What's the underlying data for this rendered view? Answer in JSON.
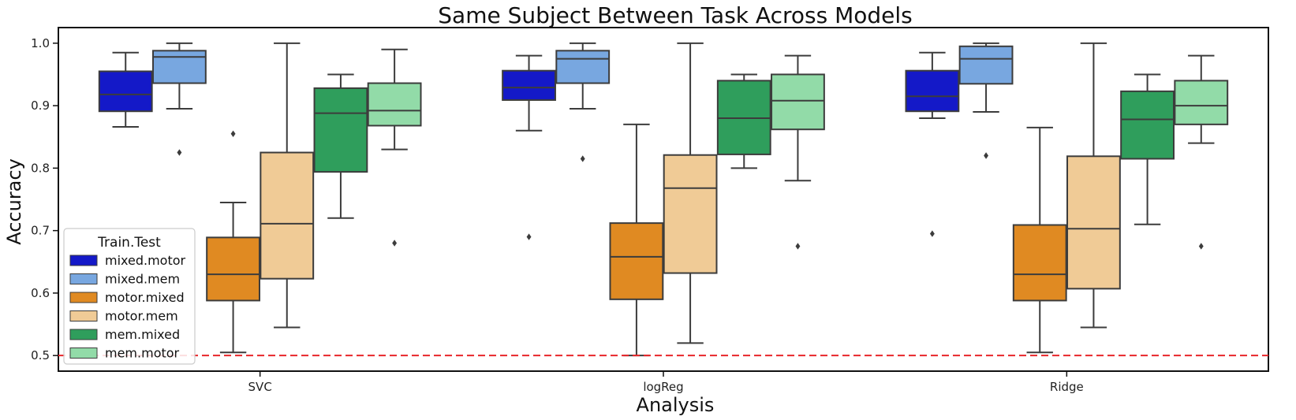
{
  "chart_data": {
    "type": "boxplot",
    "title": "Same Subject Between Task Across Models",
    "xlabel": "Analysis",
    "ylabel": "Accuracy",
    "ylim": [
      0.475,
      1.025
    ],
    "yticks": [
      "0.5",
      "0.6",
      "0.7",
      "0.8",
      "0.9",
      "1.0"
    ],
    "categories": [
      "SVC",
      "logReg",
      "Ridge"
    ],
    "reference_line": {
      "y": 0.5,
      "color": "#e8262a",
      "style": "dashed"
    },
    "legend": {
      "title": "Train.Test",
      "placement": "lower-left"
    },
    "series": [
      {
        "name": "mixed.motor",
        "color": "#1419c8",
        "boxes": [
          {
            "whislo": 0.866,
            "q1": 0.891,
            "med": 0.918,
            "q3": 0.955,
            "whishi": 0.985,
            "fliers": []
          },
          {
            "whislo": 0.86,
            "q1": 0.909,
            "med": 0.929,
            "q3": 0.956,
            "whishi": 0.98,
            "fliers": [
              0.69
            ]
          },
          {
            "whislo": 0.88,
            "q1": 0.891,
            "med": 0.915,
            "q3": 0.956,
            "whishi": 0.985,
            "fliers": [
              0.695
            ]
          }
        ]
      },
      {
        "name": "mixed.mem",
        "color": "#78a7e0",
        "boxes": [
          {
            "whislo": 0.895,
            "q1": 0.936,
            "med": 0.978,
            "q3": 0.988,
            "whishi": 1.0,
            "fliers": [
              0.825
            ]
          },
          {
            "whislo": 0.895,
            "q1": 0.936,
            "med": 0.975,
            "q3": 0.988,
            "whishi": 1.0,
            "fliers": [
              0.815
            ]
          },
          {
            "whislo": 0.89,
            "q1": 0.935,
            "med": 0.975,
            "q3": 0.995,
            "whishi": 1.0,
            "fliers": [
              0.82
            ]
          }
        ]
      },
      {
        "name": "motor.mixed",
        "color": "#e08a22",
        "boxes": [
          {
            "whislo": 0.505,
            "q1": 0.588,
            "med": 0.63,
            "q3": 0.689,
            "whishi": 0.745,
            "fliers": [
              0.855
            ]
          },
          {
            "whislo": 0.5,
            "q1": 0.59,
            "med": 0.658,
            "q3": 0.712,
            "whishi": 0.87,
            "fliers": []
          },
          {
            "whislo": 0.505,
            "q1": 0.588,
            "med": 0.63,
            "q3": 0.709,
            "whishi": 0.865,
            "fliers": []
          }
        ]
      },
      {
        "name": "motor.mem",
        "color": "#f0cb96",
        "boxes": [
          {
            "whislo": 0.545,
            "q1": 0.623,
            "med": 0.711,
            "q3": 0.825,
            "whishi": 1.0,
            "fliers": []
          },
          {
            "whislo": 0.52,
            "q1": 0.632,
            "med": 0.768,
            "q3": 0.821,
            "whishi": 1.0,
            "fliers": []
          },
          {
            "whislo": 0.545,
            "q1": 0.607,
            "med": 0.703,
            "q3": 0.819,
            "whishi": 1.0,
            "fliers": []
          }
        ]
      },
      {
        "name": "mem.mixed",
        "color": "#2f9e5c",
        "boxes": [
          {
            "whislo": 0.72,
            "q1": 0.794,
            "med": 0.888,
            "q3": 0.928,
            "whishi": 0.95,
            "fliers": []
          },
          {
            "whislo": 0.8,
            "q1": 0.822,
            "med": 0.88,
            "q3": 0.94,
            "whishi": 0.95,
            "fliers": []
          },
          {
            "whislo": 0.71,
            "q1": 0.815,
            "med": 0.878,
            "q3": 0.923,
            "whishi": 0.95,
            "fliers": []
          }
        ]
      },
      {
        "name": "mem.motor",
        "color": "#92dba8",
        "boxes": [
          {
            "whislo": 0.83,
            "q1": 0.868,
            "med": 0.892,
            "q3": 0.936,
            "whishi": 0.99,
            "fliers": [
              0.68
            ]
          },
          {
            "whislo": 0.78,
            "q1": 0.862,
            "med": 0.908,
            "q3": 0.95,
            "whishi": 0.98,
            "fliers": [
              0.675
            ]
          },
          {
            "whislo": 0.84,
            "q1": 0.87,
            "med": 0.9,
            "q3": 0.94,
            "whishi": 0.98,
            "fliers": [
              0.675
            ]
          }
        ]
      }
    ]
  }
}
